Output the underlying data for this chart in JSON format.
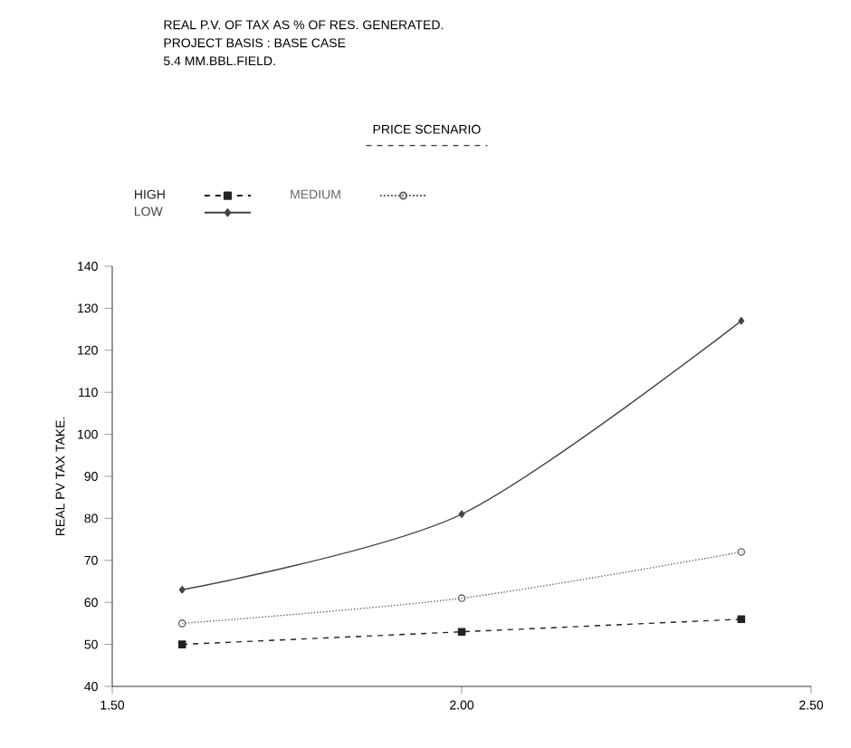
{
  "chart_data": {
    "type": "line",
    "title": "REAL P.V. OF TAX AS % OF RES. GENERATED.",
    "subtitle": "PROJECT BASIS : BASE CASE",
    "annotations": [
      "5.4 MM.BBL.FIELD."
    ],
    "ylabel": "REAL PV TAX TAKE.",
    "legend_title": "PRICE SCENARIO",
    "legend": "top",
    "x": [
      1.6,
      2.0,
      2.4
    ],
    "xlim": [
      1.5,
      2.5
    ],
    "xticks": [
      {
        "value": 1.5,
        "label": "1.50"
      },
      {
        "value": 2.0,
        "label": "2.00"
      },
      {
        "value": 2.5,
        "label": "2.50"
      }
    ],
    "ylim": [
      40,
      140
    ],
    "yticks": [
      40,
      50,
      60,
      70,
      80,
      90,
      100,
      110,
      120,
      130,
      140
    ],
    "grid": false,
    "series": [
      {
        "name": "HIGH",
        "color": "#222222",
        "values": [
          50,
          53,
          56
        ],
        "marker": "square",
        "line_style": "dashed"
      },
      {
        "name": "MEDIUM",
        "color": "#666666",
        "values": [
          55,
          61,
          72
        ],
        "marker": "circle",
        "line_style": "dotted"
      },
      {
        "name": "LOW",
        "color": "#444444",
        "values": [
          63,
          81,
          127
        ],
        "marker": "diamond",
        "line_style": "solid"
      }
    ]
  }
}
